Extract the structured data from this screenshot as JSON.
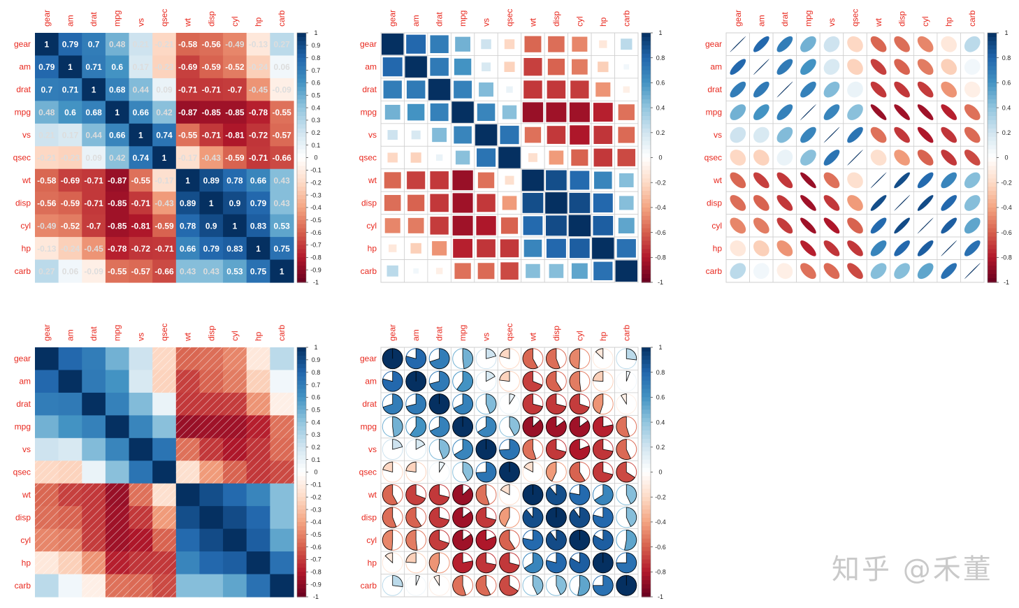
{
  "chart_data": [
    {
      "type": "heatmap",
      "method": "color+number",
      "variables": [
        "gear",
        "am",
        "drat",
        "mpg",
        "vs",
        "qsec",
        "wt",
        "disp",
        "cyl",
        "hp",
        "carb"
      ]
    },
    {
      "type": "heatmap",
      "method": "square",
      "variables": [
        "gear",
        "am",
        "drat",
        "mpg",
        "vs",
        "qsec",
        "wt",
        "disp",
        "cyl",
        "hp",
        "carb"
      ]
    },
    {
      "type": "heatmap",
      "method": "ellipse",
      "variables": [
        "gear",
        "am",
        "drat",
        "mpg",
        "vs",
        "qsec",
        "wt",
        "disp",
        "cyl",
        "hp",
        "carb"
      ]
    },
    {
      "type": "heatmap",
      "method": "shade",
      "variables": [
        "gear",
        "am",
        "drat",
        "mpg",
        "vs",
        "qsec",
        "wt",
        "disp",
        "cyl",
        "hp",
        "carb"
      ]
    },
    {
      "type": "heatmap",
      "method": "pie",
      "variables": [
        "gear",
        "am",
        "drat",
        "mpg",
        "vs",
        "qsec",
        "wt",
        "disp",
        "cyl",
        "hp",
        "carb"
      ]
    }
  ],
  "correlation_matrix": [
    [
      1,
      0.79,
      0.7,
      0.48,
      0.21,
      -0.21,
      -0.58,
      -0.56,
      -0.49,
      -0.13,
      0.27
    ],
    [
      0.79,
      1,
      0.71,
      0.6,
      0.17,
      -0.23,
      -0.69,
      -0.59,
      -0.52,
      -0.24,
      0.06
    ],
    [
      0.7,
      0.71,
      1,
      0.68,
      0.44,
      0.09,
      -0.71,
      -0.71,
      -0.7,
      -0.45,
      -0.09
    ],
    [
      0.48,
      0.6,
      0.68,
      1,
      0.66,
      0.42,
      -0.87,
      -0.85,
      -0.85,
      -0.78,
      -0.55
    ],
    [
      0.21,
      0.17,
      0.44,
      0.66,
      1,
      0.74,
      -0.55,
      -0.71,
      -0.81,
      -0.72,
      -0.57
    ],
    [
      -0.21,
      -0.23,
      0.09,
      0.42,
      0.74,
      1,
      -0.17,
      -0.43,
      -0.59,
      -0.71,
      -0.66
    ],
    [
      -0.58,
      -0.69,
      -0.71,
      -0.87,
      -0.55,
      -0.17,
      1,
      0.89,
      0.78,
      0.66,
      0.43
    ],
    [
      -0.56,
      -0.59,
      -0.71,
      -0.85,
      -0.71,
      -0.43,
      0.89,
      1,
      0.9,
      0.79,
      0.43
    ],
    [
      -0.49,
      -0.52,
      -0.7,
      -0.85,
      -0.81,
      -0.59,
      0.78,
      0.9,
      1,
      0.83,
      0.53
    ],
    [
      -0.13,
      -0.24,
      -0.45,
      -0.78,
      -0.72,
      -0.71,
      0.66,
      0.79,
      0.83,
      1,
      0.75
    ],
    [
      0.27,
      0.06,
      -0.09,
      -0.55,
      -0.57,
      -0.66,
      0.43,
      0.43,
      0.53,
      0.75,
      1
    ]
  ],
  "legend": {
    "range": [
      -1,
      1
    ],
    "ticks_fine": [
      "1",
      "0.9",
      "0.8",
      "0.7",
      "0.6",
      "0.5",
      "0.4",
      "0.3",
      "0.2",
      "0.1",
      "0",
      "-0.1",
      "-0.2",
      "-0.3",
      "-0.4",
      "-0.5",
      "-0.6",
      "-0.7",
      "-0.8",
      "-0.9",
      "-1"
    ],
    "ticks_coarse": [
      "1",
      "0.8",
      "0.6",
      "0.4",
      "0.2",
      "0",
      "-0.2",
      "-0.4",
      "-0.6",
      "-0.8",
      "-1"
    ]
  },
  "colors": {
    "label": "#e8281e",
    "grid": "#cfcfcf",
    "palette": [
      "#67001f",
      "#b2182b",
      "#d6604d",
      "#f4a582",
      "#fddbc7",
      "#ffffff",
      "#d1e5f0",
      "#92c5de",
      "#4393c3",
      "#2166ac",
      "#053061"
    ]
  },
  "watermark": "知乎 @禾董"
}
